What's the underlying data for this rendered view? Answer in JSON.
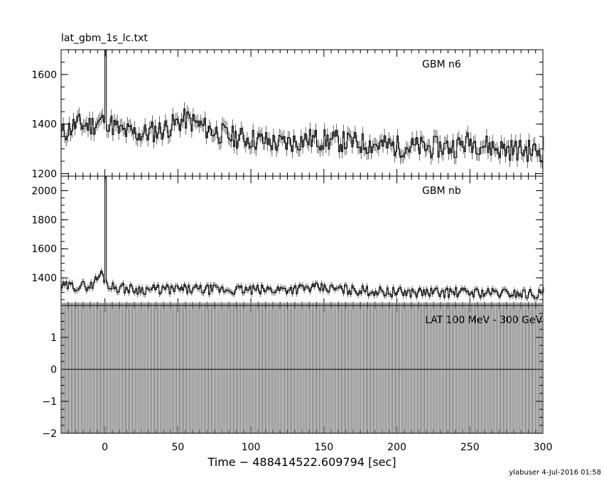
{
  "file_title": "lat_gbm_1s_lc.txt",
  "footer": "ylabuser  4-Jul-2016 01:58",
  "chart_data": [
    {
      "type": "line",
      "legend": "GBM n6",
      "xlim": [
        -30,
        300
      ],
      "ylim": [
        1190,
        1700
      ],
      "yticks": [
        1200,
        1400,
        1600
      ],
      "yticklabels": [
        "1200",
        "1400",
        "1600"
      ],
      "baseline": 1330,
      "spike": {
        "x": 0,
        "y": 1700
      },
      "segments": [
        {
          "x": -30,
          "y": 1360
        },
        {
          "x": -20,
          "y": 1400
        },
        {
          "x": -10,
          "y": 1395
        },
        {
          "x": 0,
          "y": 1420
        },
        {
          "x": 10,
          "y": 1370
        },
        {
          "x": 25,
          "y": 1360
        },
        {
          "x": 40,
          "y": 1380
        },
        {
          "x": 55,
          "y": 1420
        },
        {
          "x": 70,
          "y": 1380
        },
        {
          "x": 85,
          "y": 1350
        },
        {
          "x": 100,
          "y": 1340
        },
        {
          "x": 120,
          "y": 1320
        },
        {
          "x": 140,
          "y": 1340
        },
        {
          "x": 160,
          "y": 1330
        },
        {
          "x": 180,
          "y": 1320
        },
        {
          "x": 200,
          "y": 1310
        },
        {
          "x": 220,
          "y": 1305
        },
        {
          "x": 240,
          "y": 1310
        },
        {
          "x": 250,
          "y": 1330
        },
        {
          "x": 270,
          "y": 1300
        },
        {
          "x": 300,
          "y": 1290
        }
      ]
    },
    {
      "type": "line",
      "legend": "GBM nb",
      "xlim": [
        -30,
        300
      ],
      "ylim": [
        1210,
        2100
      ],
      "yticks": [
        1400,
        1600,
        1800,
        2000
      ],
      "yticklabels": [
        "1400",
        "1600",
        "1800",
        "2000"
      ],
      "baseline": 1320,
      "spike": {
        "x": 0,
        "y": 2100
      },
      "segments": [
        {
          "x": -30,
          "y": 1340
        },
        {
          "x": -10,
          "y": 1345
        },
        {
          "x": -3,
          "y": 1430
        },
        {
          "x": 3,
          "y": 1340
        },
        {
          "x": 20,
          "y": 1320
        },
        {
          "x": 60,
          "y": 1320
        },
        {
          "x": 100,
          "y": 1315
        },
        {
          "x": 145,
          "y": 1330
        },
        {
          "x": 200,
          "y": 1300
        },
        {
          "x": 250,
          "y": 1300
        },
        {
          "x": 300,
          "y": 1290
        }
      ]
    },
    {
      "type": "bar",
      "legend": "LAT 100 MeV - 300 GeV",
      "xlim": [
        -30,
        300
      ],
      "ylim": [
        -2,
        2
      ],
      "yticks": [
        -2,
        -1,
        0,
        1
      ],
      "yticklabels": [
        "−2",
        "−1",
        "0",
        "1"
      ],
      "xticks": [
        0,
        50,
        100,
        150,
        200,
        250,
        300
      ],
      "xticklabels": [
        "0",
        "50",
        "100",
        "150",
        "200",
        "250",
        "300"
      ],
      "xlabel": "Time − 488414522.609794 [sec]",
      "bin_width": 1,
      "value": 0,
      "error": 2
    }
  ]
}
